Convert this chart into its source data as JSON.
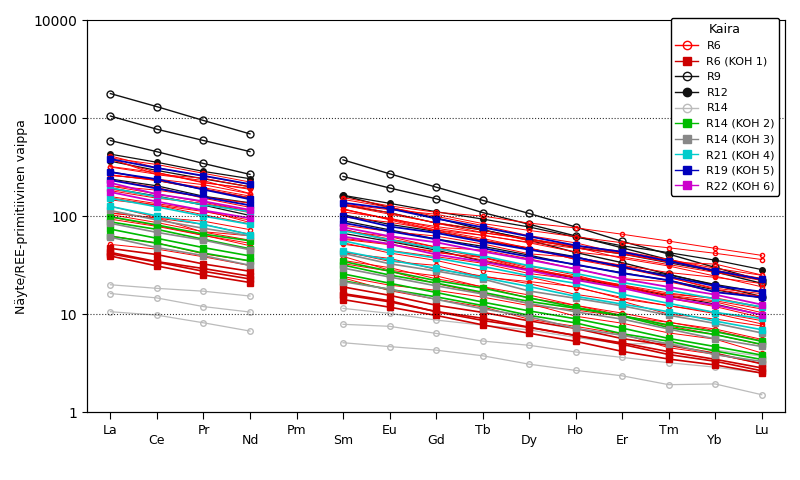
{
  "ylabel": "Näyte/REE-primitiivinen vaippa",
  "legend_title": "Kaira",
  "legend_entries": [
    {
      "label": "R6",
      "color": "#FF0000",
      "marker": "o",
      "filled": false
    },
    {
      "label": "R6 (KOH 1)",
      "color": "#CC0000",
      "marker": "s",
      "filled": true
    },
    {
      "label": "R9",
      "color": "#000000",
      "marker": "o",
      "filled": false
    },
    {
      "label": "R12",
      "color": "#000000",
      "marker": "o",
      "filled": true
    },
    {
      "label": "R14",
      "color": "#BBBBBB",
      "marker": "o",
      "filled": false
    },
    {
      "label": "R14 (KOH 2)",
      "color": "#00BB00",
      "marker": "s",
      "filled": true
    },
    {
      "label": "R14 (KOH 3)",
      "color": "#888888",
      "marker": "s",
      "filled": true
    },
    {
      "label": "R21 (KOH 4)",
      "color": "#00CCCC",
      "marker": "s",
      "filled": true
    },
    {
      "label": "R19 (KOH 5)",
      "color": "#0000CC",
      "marker": "s",
      "filled": true
    },
    {
      "label": "R22 (KOH 6)",
      "color": "#CC00CC",
      "marker": "s",
      "filled": true
    }
  ],
  "all_elements": [
    "La",
    "Ce",
    "Pr",
    "Nd",
    "Pm",
    "Sm",
    "Eu",
    "Gd",
    "Tb",
    "Dy",
    "Ho",
    "Er",
    "Tm",
    "Yb",
    "Lu"
  ],
  "odd_elements": [
    "La",
    "Pr",
    "Pm",
    "Eu",
    "Tb",
    "Ho",
    "Tm",
    "Lu"
  ],
  "even_elements": [
    "Ce",
    "Nd",
    "Sm",
    "Gd",
    "Dy",
    "Er",
    "Yb"
  ],
  "odd_indices": [
    0,
    2,
    4,
    6,
    8,
    10,
    12,
    14
  ],
  "even_indices": [
    1,
    3,
    5,
    7,
    9,
    11,
    13
  ],
  "pm_index": 4,
  "ylim_log": [
    1,
    10000
  ],
  "hgrid": [
    10,
    100,
    1000
  ],
  "colors": {
    "R6": "#FF0000",
    "R9": "#111111",
    "R12": "#111111",
    "R14": "#BBBBBB",
    "R6KOH1": "#CC0000",
    "R14KOH2": "#00BB00",
    "R14KOH3": "#888888",
    "R21KOH4": "#00CCCC",
    "R19KOH5": "#0000BB",
    "R22KOH6": "#CC00CC"
  }
}
